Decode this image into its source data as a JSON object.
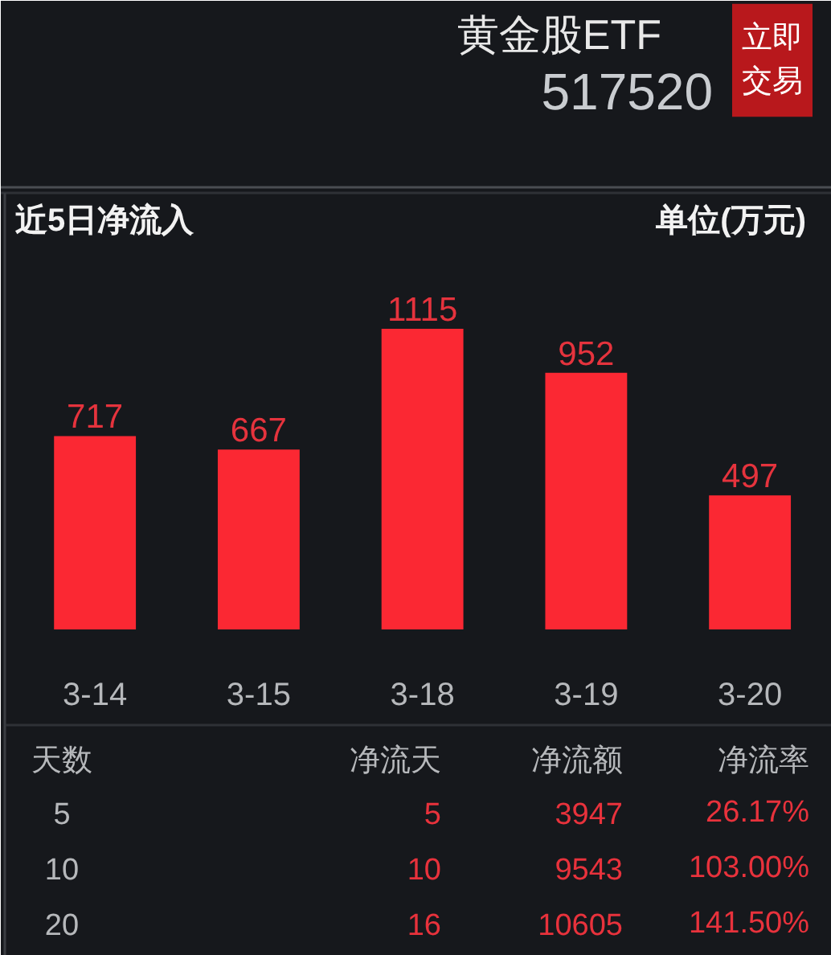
{
  "chart_data": {
    "type": "bar",
    "title": "近5日净流入",
    "categories": [
      "3-14",
      "3-15",
      "3-18",
      "3-19",
      "3-20"
    ],
    "values": [
      717,
      667,
      1115,
      952,
      497
    ],
    "color": "#fb2833",
    "data_labels": true,
    "annotations": [
      "黄金股ETF",
      "517520",
      "立即交易",
      "单位(万元)",
      "天数",
      "净流天",
      "净流额",
      "净流率",
      "5",
      "5",
      "3947",
      "26.17%",
      "10",
      "10",
      "9543",
      "103.00%",
      "20",
      "16",
      "10605",
      "141.50%"
    ]
  }
}
